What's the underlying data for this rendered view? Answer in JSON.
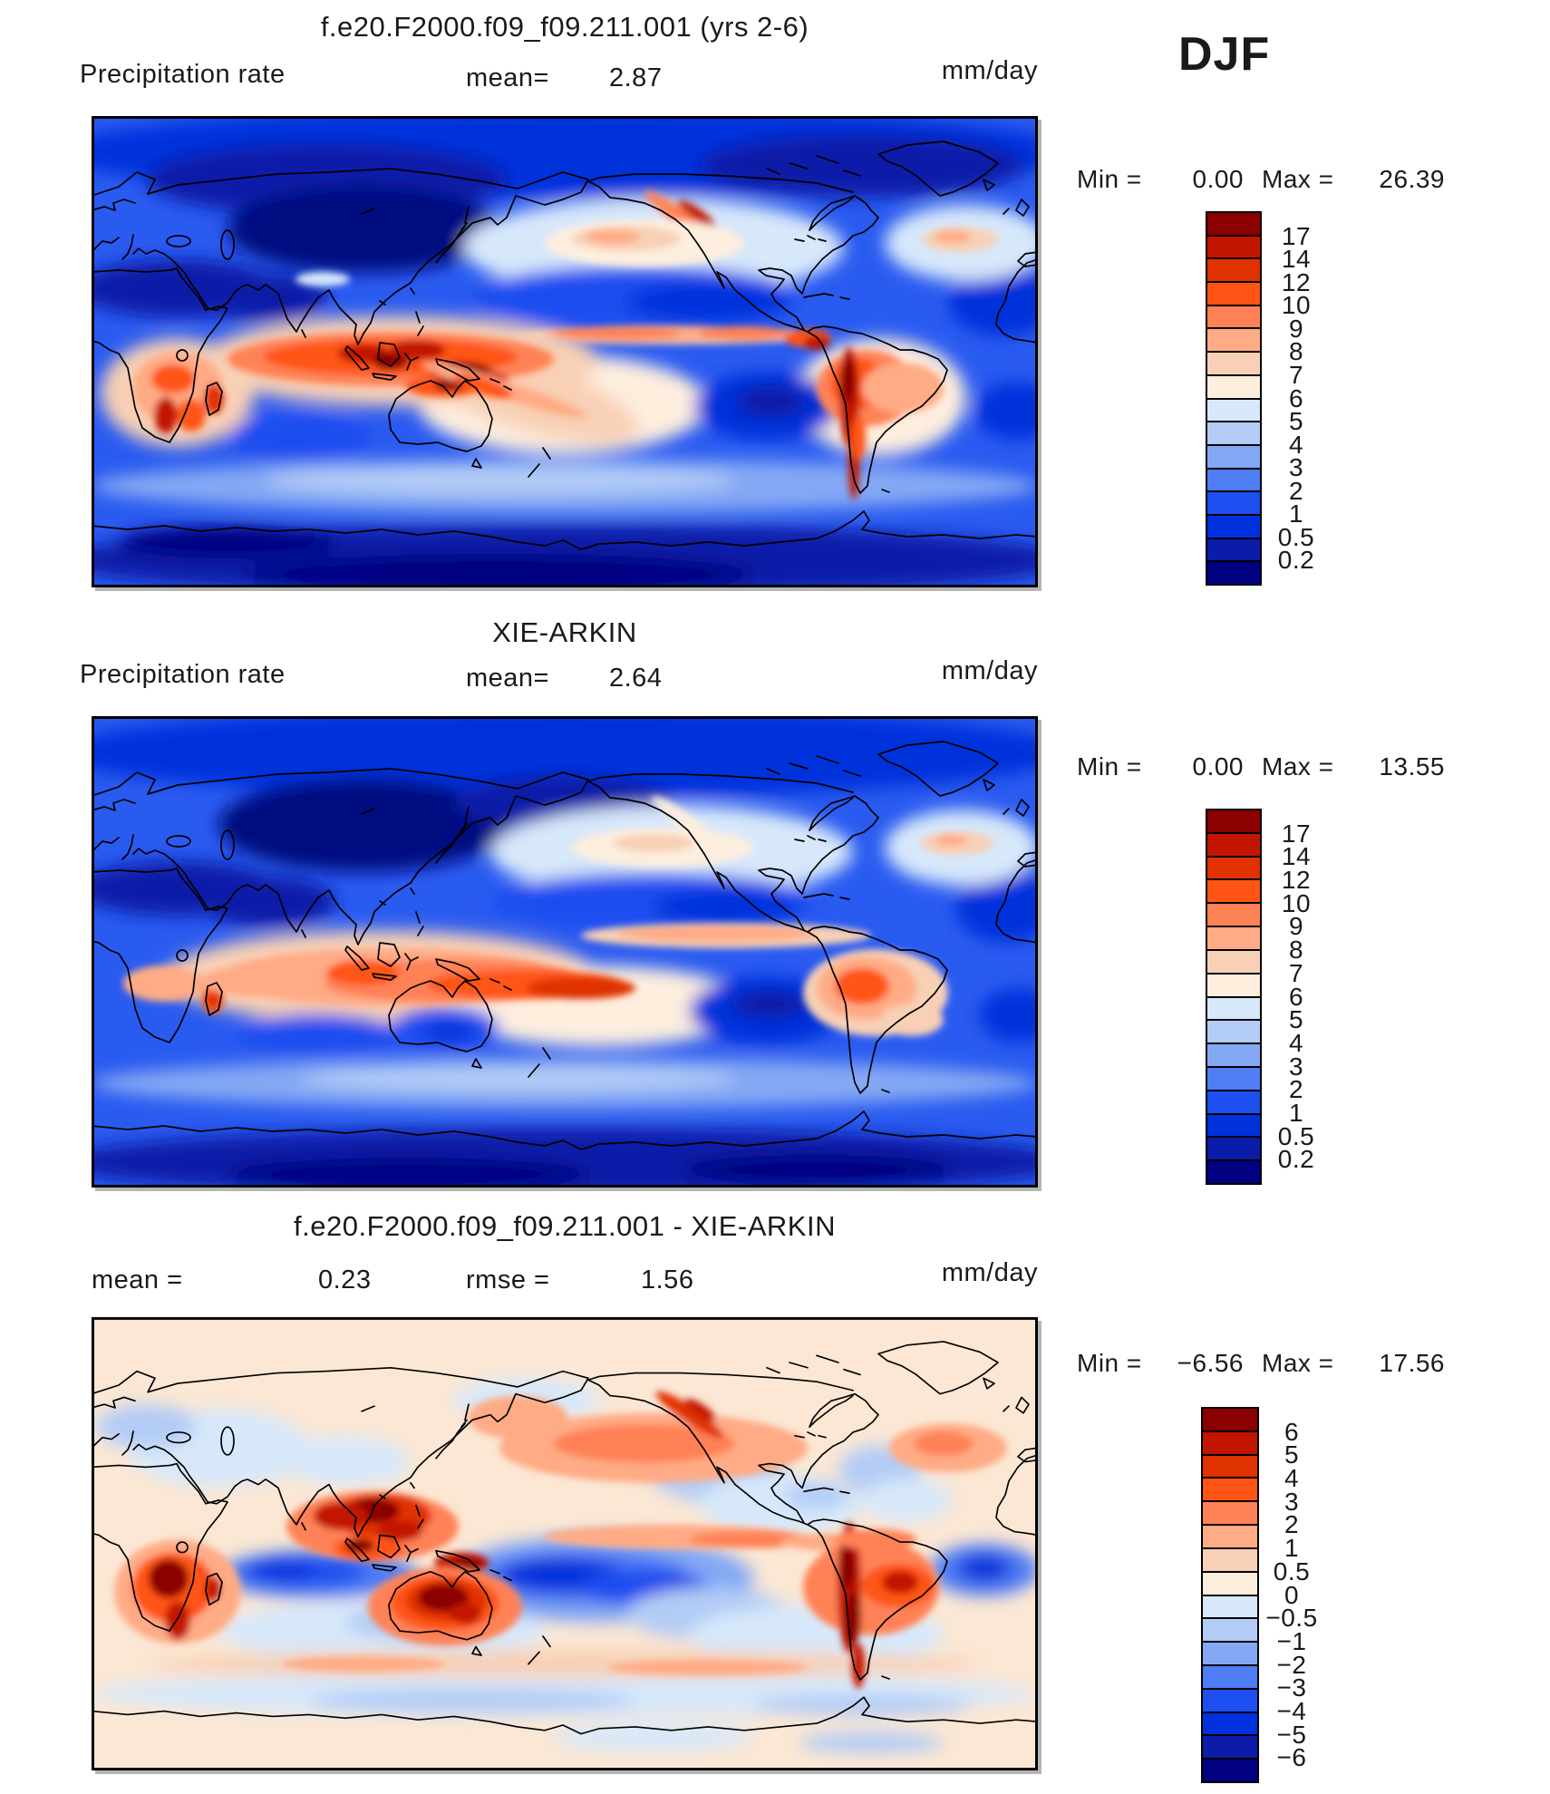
{
  "season": "DJF",
  "palette": [
    "#8B0000",
    "#C21500",
    "#E03100",
    "#FF5416",
    "#FF8257",
    "#FFAB85",
    "#F8D0B5",
    "#FDEEDE",
    "#D7E8FA",
    "#B3CCF6",
    "#84A8F4",
    "#4F7DF4",
    "#1C4EF0",
    "#0031DC",
    "#0A1CA8",
    "#000080"
  ],
  "panels": [
    {
      "title": "f.e20.F2000.f09_f09.211.001 (yrs 2-6)",
      "field_label": "Precipitation rate",
      "mean_label": "mean=",
      "mean": "2.87",
      "units": "mm/day",
      "min_label": "Min =",
      "min": "0.00",
      "max_label": "Max =",
      "max": "26.39",
      "colorbar_labels": [
        "17",
        "14",
        "12",
        "10",
        "9",
        "8",
        "7",
        "6",
        "5",
        "4",
        "3",
        "2",
        "1",
        "0.5",
        "0.2"
      ]
    },
    {
      "title": "XIE-ARKIN",
      "field_label": "Precipitation rate",
      "mean_label": "mean=",
      "mean": "2.64",
      "units": "mm/day",
      "min_label": "Min =",
      "min": "0.00",
      "max_label": "Max =",
      "max": "13.55",
      "colorbar_labels": [
        "17",
        "14",
        "12",
        "10",
        "9",
        "8",
        "7",
        "6",
        "5",
        "4",
        "3",
        "2",
        "1",
        "0.5",
        "0.2"
      ]
    },
    {
      "title": "f.e20.F2000.f09_f09.211.001 - XIE-ARKIN",
      "mean_label": "mean =",
      "mean": "0.23",
      "rmse_label": "rmse =",
      "rmse": "1.56",
      "units": "mm/day",
      "min_label": "Min =",
      "min": "−6.56",
      "max_label": "Max =",
      "max": "17.56",
      "colorbar_labels": [
        "6",
        "5",
        "4",
        "3",
        "2",
        "1",
        "0.5",
        "0",
        "−0.5",
        "−1",
        "−2",
        "−3",
        "−4",
        "−5",
        "−6"
      ]
    }
  ],
  "chart_data": {
    "type": "heatmap",
    "subtype": "global filled-contour maps (cylindrical equidistant, Pacific-centered)",
    "season": "DJF",
    "variable": "Precipitation rate",
    "units": "mm/day",
    "legend_position": "right of each map, vertical discrete colorbar",
    "panels": [
      {
        "title": "f.e20.F2000.f09_f09.211.001 (yrs 2-6)",
        "mean": 2.87,
        "min": 0.0,
        "max": 26.39,
        "contour_levels": [
          0.2,
          0.5,
          1,
          2,
          3,
          4,
          5,
          6,
          7,
          8,
          9,
          10,
          12,
          14,
          17
        ]
      },
      {
        "title": "XIE-ARKIN",
        "mean": 2.64,
        "min": 0.0,
        "max": 13.55,
        "contour_levels": [
          0.2,
          0.5,
          1,
          2,
          3,
          4,
          5,
          6,
          7,
          8,
          9,
          10,
          12,
          14,
          17
        ]
      },
      {
        "title": "f.e20.F2000.f09_f09.211.001 - XIE-ARKIN",
        "mean": 0.23,
        "rmse": 1.56,
        "min": -6.56,
        "max": 17.56,
        "contour_levels": [
          -6,
          -5,
          -4,
          -3,
          -2,
          -1,
          -0.5,
          0,
          0.5,
          1,
          2,
          3,
          4,
          5,
          6
        ]
      }
    ],
    "palette_low_to_high": [
      "#000080",
      "#0A1CA8",
      "#0031DC",
      "#1C4EF0",
      "#4F7DF4",
      "#84A8F4",
      "#B3CCF6",
      "#D7E8FA",
      "#FDEEDE",
      "#F8D0B5",
      "#FFAB85",
      "#FF8257",
      "#FF5416",
      "#E03100",
      "#C21500",
      "#8B0000"
    ]
  }
}
